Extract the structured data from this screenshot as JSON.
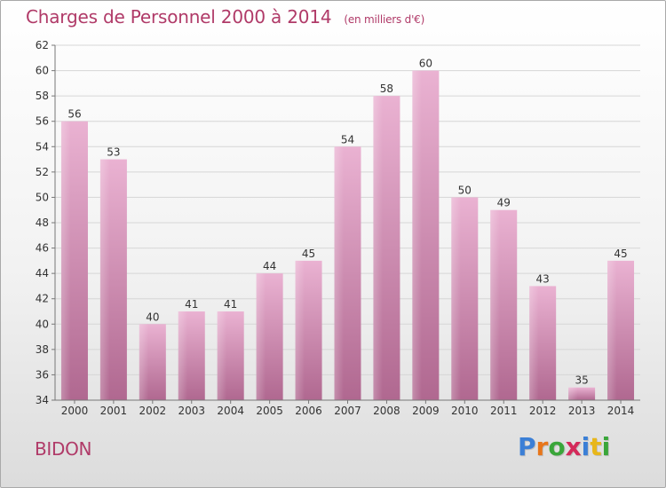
{
  "title": "Charges de Personnel 2000 à 2014",
  "unit_note": "(en milliers d'€)",
  "commune": "BIDON",
  "logo_letters": [
    "P",
    "r",
    "o",
    "x",
    "i",
    "t",
    "i"
  ],
  "colors": {
    "title": "#b03a68",
    "bar_light": "#eab2d2",
    "bar_dark": "#b06890",
    "logo": [
      "#3b7fd6",
      "#e8761a",
      "#3aa63a",
      "#d42a5a",
      "#3b7fd6",
      "#e8b71a",
      "#3aa63a"
    ]
  },
  "chart_data": {
    "type": "bar",
    "title": "Charges de Personnel 2000 à 2014",
    "xlabel": "",
    "ylabel": "",
    "categories": [
      "2000",
      "2001",
      "2002",
      "2003",
      "2004",
      "2005",
      "2006",
      "2007",
      "2008",
      "2009",
      "2010",
      "2011",
      "2012",
      "2013",
      "2014"
    ],
    "values": [
      56,
      53,
      40,
      41,
      41,
      44,
      45,
      54,
      58,
      60,
      50,
      49,
      43,
      35,
      45
    ],
    "ylim": [
      34,
      62
    ],
    "yticks": [
      34,
      36,
      38,
      40,
      42,
      44,
      46,
      48,
      50,
      52,
      54,
      56,
      58,
      60,
      62
    ],
    "grid": true,
    "legend": "none",
    "data_labels": true
  }
}
